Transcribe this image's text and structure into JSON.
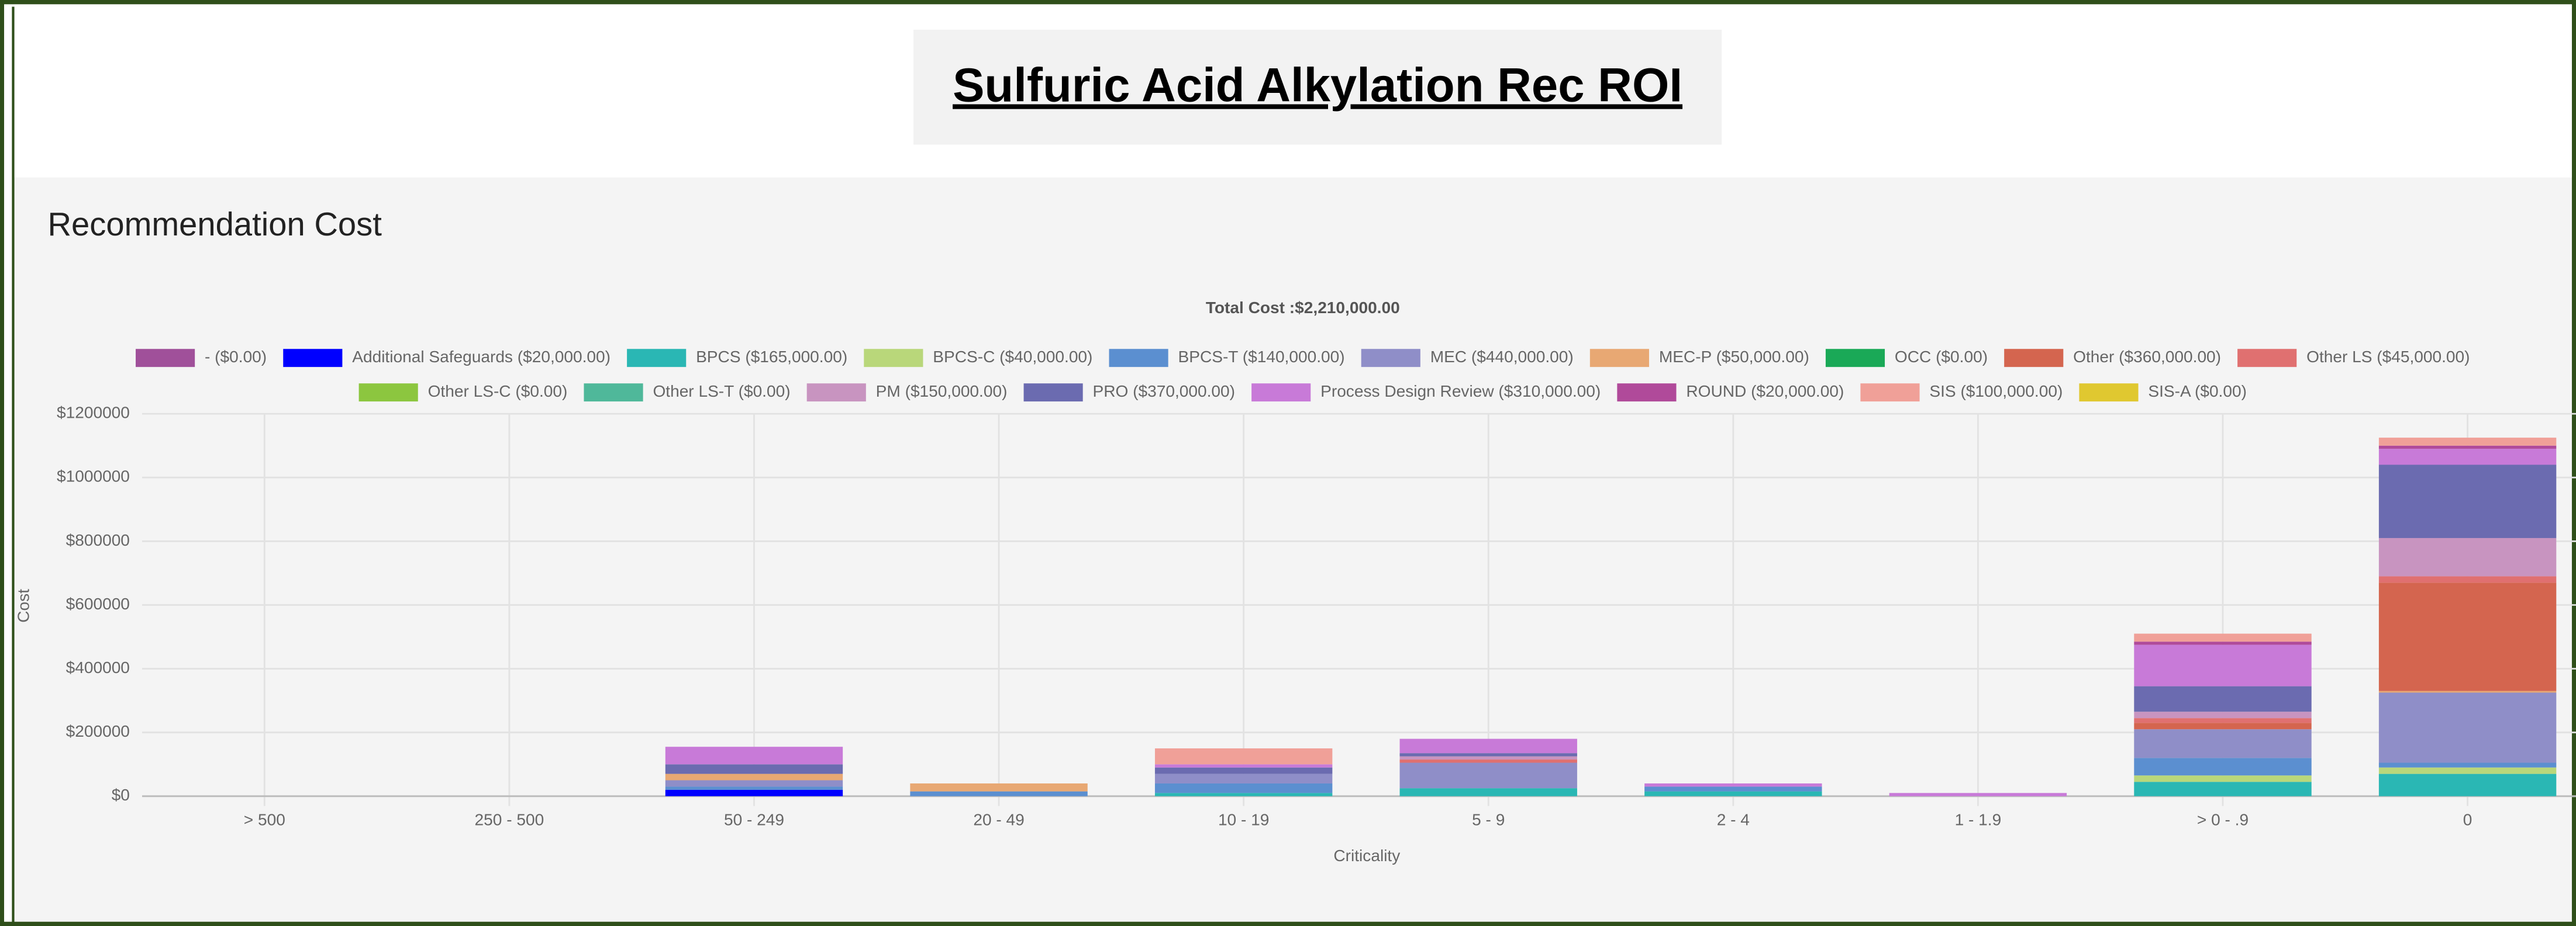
{
  "page_title": "Sulfuric Acid Alkylation Rec ROI",
  "chart_data": {
    "type": "stacked_bar",
    "title": "Recommendation Cost",
    "subtitle": "Total Cost :$2,210,000.00",
    "xlabel": "Criticality",
    "ylabel": "Cost",
    "categories": [
      "> 500",
      "250 - 500",
      "50 - 249",
      "20 - 49",
      "10 - 19",
      "5 - 9",
      "2 - 4",
      "1 - 1.9",
      "> 0 - .9",
      "0"
    ],
    "ylim": [
      0,
      1200000
    ],
    "yticks": [
      {
        "value": 0,
        "label": "$0"
      },
      {
        "value": 200000,
        "label": "$200000"
      },
      {
        "value": 400000,
        "label": "$400000"
      },
      {
        "value": 600000,
        "label": "$600000"
      },
      {
        "value": 800000,
        "label": "$800000"
      },
      {
        "value": 1000000,
        "label": "$1000000"
      },
      {
        "value": 1200000,
        "label": "$1200000"
      }
    ],
    "grid": true,
    "legend": "top",
    "series": [
      {
        "name": "- ($0.00)",
        "color": "#a0509a",
        "values": [
          0,
          0,
          0,
          0,
          0,
          0,
          0,
          0,
          0,
          0
        ]
      },
      {
        "name": "Additional Safeguards ($20,000.00)",
        "color": "#0000ff",
        "values": [
          0,
          0,
          20000,
          0,
          0,
          0,
          0,
          0,
          0,
          0
        ]
      },
      {
        "name": "BPCS ($165,000.00)",
        "color": "#2ab7b4",
        "values": [
          0,
          0,
          0,
          0,
          10000,
          25000,
          15000,
          0,
          45000,
          70000
        ]
      },
      {
        "name": "BPCS-C ($40,000.00)",
        "color": "#b9d77a",
        "values": [
          0,
          0,
          0,
          0,
          0,
          0,
          0,
          0,
          20000,
          20000
        ]
      },
      {
        "name": "BPCS-T ($140,000.00)",
        "color": "#5b8fd0",
        "values": [
          0,
          0,
          10000,
          15000,
          30000,
          0,
          15000,
          0,
          55000,
          15000
        ]
      },
      {
        "name": "MEC ($440,000.00)",
        "color": "#8f8ec8",
        "values": [
          0,
          0,
          20000,
          0,
          30000,
          80000,
          0,
          0,
          90000,
          220000
        ]
      },
      {
        "name": "MEC-P ($50,000.00)",
        "color": "#e8a873",
        "values": [
          0,
          0,
          20000,
          25000,
          0,
          0,
          0,
          0,
          0,
          5000
        ]
      },
      {
        "name": "OCC ($0.00)",
        "color": "#1aa957",
        "values": [
          0,
          0,
          0,
          0,
          0,
          0,
          0,
          0,
          0,
          0
        ]
      },
      {
        "name": "Other ($360,000.00)",
        "color": "#d4654f",
        "values": [
          0,
          0,
          0,
          0,
          0,
          0,
          0,
          0,
          20000,
          340000
        ]
      },
      {
        "name": "Other LS ($45,000.00)",
        "color": "#e07070",
        "values": [
          0,
          0,
          0,
          0,
          0,
          10000,
          0,
          0,
          15000,
          20000
        ]
      },
      {
        "name": "Other LS-C ($0.00)",
        "color": "#8cc63f",
        "values": [
          0,
          0,
          0,
          0,
          0,
          0,
          0,
          0,
          0,
          0
        ]
      },
      {
        "name": "Other LS-T ($0.00)",
        "color": "#4fb89a",
        "values": [
          0,
          0,
          0,
          0,
          0,
          0,
          0,
          0,
          0,
          0
        ]
      },
      {
        "name": "PM ($150,000.00)",
        "color": "#c894c0",
        "values": [
          0,
          0,
          0,
          0,
          0,
          10000,
          0,
          0,
          20000,
          120000
        ]
      },
      {
        "name": "PRO ($370,000.00)",
        "color": "#6b6bb0",
        "values": [
          0,
          0,
          30000,
          0,
          20000,
          10000,
          0,
          0,
          80000,
          230000
        ]
      },
      {
        "name": "Process Design Review ($310,000.00)",
        "color": "#c87ad8",
        "values": [
          0,
          0,
          55000,
          0,
          10000,
          45000,
          10000,
          10000,
          130000,
          50000
        ]
      },
      {
        "name": "ROUND ($20,000.00)",
        "color": "#b04a9a",
        "values": [
          0,
          0,
          0,
          0,
          0,
          0,
          0,
          0,
          10000,
          10000
        ]
      },
      {
        "name": "SIS ($100,000.00)",
        "color": "#f0a098",
        "values": [
          0,
          0,
          0,
          0,
          50000,
          0,
          0,
          0,
          25000,
          25000
        ]
      },
      {
        "name": "SIS-A ($0.00)",
        "color": "#e0c830",
        "values": [
          0,
          0,
          0,
          0,
          0,
          0,
          0,
          0,
          0,
          0
        ]
      }
    ]
  }
}
